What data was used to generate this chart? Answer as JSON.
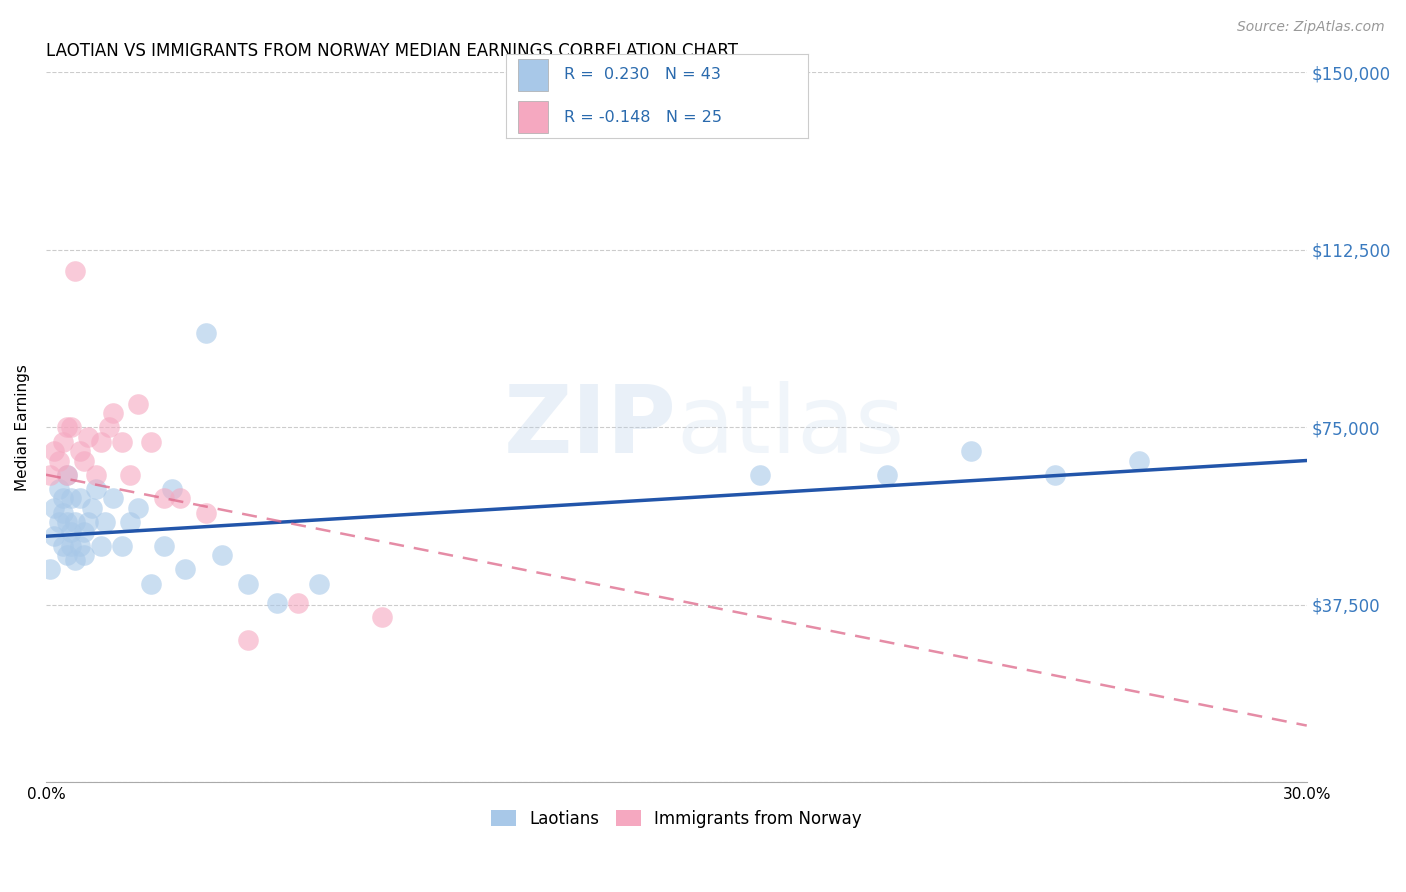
{
  "title": "LAOTIAN VS IMMIGRANTS FROM NORWAY MEDIAN EARNINGS CORRELATION CHART",
  "source": "Source: ZipAtlas.com",
  "ylabel": "Median Earnings",
  "xlim": [
    0,
    0.3
  ],
  "ylim": [
    0,
    150000
  ],
  "yticks": [
    0,
    37500,
    75000,
    112500,
    150000
  ],
  "ytick_labels": [
    "",
    "$37,500",
    "$75,000",
    "$112,500",
    "$150,000"
  ],
  "blue_color": "#a8c8e8",
  "pink_color": "#f5a8c0",
  "blue_line_color": "#2255aa",
  "pink_line_color": "#dd6688",
  "laotian_x": [
    0.001,
    0.002,
    0.002,
    0.003,
    0.003,
    0.004,
    0.004,
    0.004,
    0.005,
    0.005,
    0.005,
    0.006,
    0.006,
    0.006,
    0.007,
    0.007,
    0.008,
    0.008,
    0.009,
    0.009,
    0.01,
    0.011,
    0.012,
    0.013,
    0.014,
    0.016,
    0.018,
    0.02,
    0.022,
    0.025,
    0.028,
    0.03,
    0.033,
    0.038,
    0.042,
    0.048,
    0.055,
    0.065,
    0.17,
    0.2,
    0.22,
    0.24,
    0.26
  ],
  "laotian_y": [
    45000,
    58000,
    52000,
    62000,
    55000,
    60000,
    50000,
    57000,
    65000,
    48000,
    55000,
    50000,
    60000,
    53000,
    47000,
    55000,
    50000,
    60000,
    48000,
    53000,
    55000,
    58000,
    62000,
    50000,
    55000,
    60000,
    50000,
    55000,
    58000,
    42000,
    50000,
    62000,
    45000,
    95000,
    48000,
    42000,
    38000,
    42000,
    65000,
    65000,
    70000,
    65000,
    68000
  ],
  "norway_x": [
    0.001,
    0.002,
    0.003,
    0.004,
    0.005,
    0.005,
    0.006,
    0.007,
    0.008,
    0.009,
    0.01,
    0.012,
    0.013,
    0.015,
    0.016,
    0.018,
    0.02,
    0.022,
    0.025,
    0.028,
    0.032,
    0.038,
    0.048,
    0.06,
    0.08
  ],
  "norway_y": [
    65000,
    70000,
    68000,
    72000,
    65000,
    75000,
    75000,
    108000,
    70000,
    68000,
    73000,
    65000,
    72000,
    75000,
    78000,
    72000,
    65000,
    80000,
    72000,
    60000,
    60000,
    57000,
    30000,
    38000,
    35000
  ],
  "lao_line_y0": 52000,
  "lao_line_y1": 68000,
  "nor_line_y0": 65000,
  "nor_line_y1": 12000
}
